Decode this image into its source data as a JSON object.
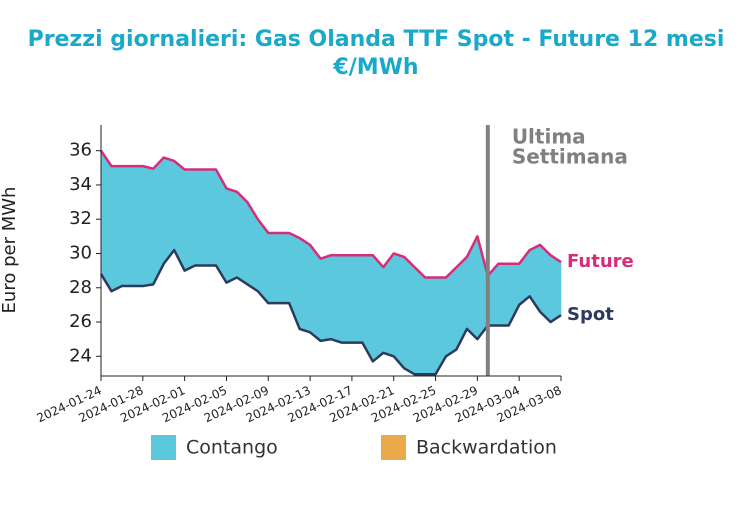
{
  "chart_data": {
    "type": "range-area",
    "title": "Prezzi giornalieri: Gas Olanda TTF Spot - Future 12 mesi",
    "subtitle": "€/MWh",
    "y_label": "Euro per MWh",
    "x": [
      "2024-01-24",
      "2024-01-25",
      "2024-01-26",
      "2024-01-27",
      "2024-01-28",
      "2024-01-29",
      "2024-01-30",
      "2024-01-31",
      "2024-02-01",
      "2024-02-02",
      "2024-02-03",
      "2024-02-04",
      "2024-02-05",
      "2024-02-06",
      "2024-02-07",
      "2024-02-08",
      "2024-02-09",
      "2024-02-10",
      "2024-02-11",
      "2024-02-12",
      "2024-02-13",
      "2024-02-14",
      "2024-02-15",
      "2024-02-16",
      "2024-02-17",
      "2024-02-18",
      "2024-02-19",
      "2024-02-20",
      "2024-02-21",
      "2024-02-22",
      "2024-02-23",
      "2024-02-24",
      "2024-02-25",
      "2024-02-26",
      "2024-02-27",
      "2024-02-28",
      "2024-02-29",
      "2024-03-01",
      "2024-03-02",
      "2024-03-03",
      "2024-03-04",
      "2024-03-05",
      "2024-03-06",
      "2024-03-07",
      "2024-03-08"
    ],
    "series": [
      {
        "name": "Future",
        "color": "#d62d7a",
        "values": [
          36.0,
          35.1,
          35.1,
          35.1,
          35.1,
          34.95,
          35.6,
          35.4,
          34.9,
          34.9,
          34.9,
          34.9,
          33.8,
          33.6,
          33.0,
          32.0,
          31.2,
          31.2,
          31.2,
          30.9,
          30.5,
          29.7,
          29.9,
          29.9,
          29.9,
          29.9,
          29.9,
          29.2,
          30.0,
          29.8,
          29.2,
          28.6,
          28.6,
          28.6,
          29.2,
          29.8,
          31.0,
          28.7,
          29.4,
          29.4,
          29.4,
          30.2,
          30.5,
          29.9,
          29.5
        ]
      },
      {
        "name": "Spot",
        "color": "#2c3b5c",
        "values": [
          28.8,
          27.8,
          28.1,
          28.1,
          28.1,
          28.2,
          29.4,
          30.2,
          29.0,
          29.3,
          29.3,
          29.3,
          28.3,
          28.6,
          28.2,
          27.8,
          27.1,
          27.1,
          27.1,
          25.6,
          25.4,
          24.9,
          25.0,
          24.8,
          24.8,
          24.8,
          23.7,
          24.2,
          24.0,
          23.3,
          22.95,
          22.95,
          22.95,
          24.0,
          24.4,
          25.6,
          25.0,
          25.8,
          25.8,
          25.8,
          27.0,
          27.5,
          26.6,
          26.0,
          26.4
        ]
      }
    ],
    "fills": [
      {
        "name": "Contango",
        "color": "#5bc8de"
      },
      {
        "name": "Backwardation",
        "color": "#eaaa4c"
      }
    ],
    "xlim": [
      "2024-01-24",
      "2024-03-08"
    ],
    "xticks": [
      "2024-01-24",
      "2024-01-28",
      "2024-02-01",
      "2024-02-05",
      "2024-02-09",
      "2024-02-13",
      "2024-02-17",
      "2024-02-21",
      "2024-02-25",
      "2024-02-29",
      "2024-03-04",
      "2024-03-08"
    ],
    "ylim": [
      22.85,
      37.5
    ],
    "yticks": [
      24,
      26,
      28,
      30,
      32,
      34,
      36
    ],
    "marker": {
      "x": "2024-03-01",
      "label": [
        "Ultima",
        "Settimana"
      ],
      "color": "#808080"
    }
  }
}
